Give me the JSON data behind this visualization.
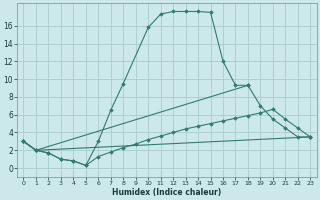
{
  "xlabel": "Humidex (Indice chaleur)",
  "bg_color": "#cce8ea",
  "grid_color": "#aacccc",
  "line_color": "#2e7d6e",
  "xlim": [
    -0.5,
    23.5
  ],
  "ylim": [
    -1.0,
    18.5
  ],
  "xticks": [
    0,
    1,
    2,
    3,
    4,
    5,
    6,
    7,
    8,
    9,
    10,
    11,
    12,
    13,
    14,
    15,
    16,
    17,
    18,
    19,
    20,
    21,
    22,
    23
  ],
  "yticks": [
    0,
    2,
    4,
    6,
    8,
    10,
    12,
    14,
    16
  ],
  "series": [
    {
      "x": [
        0,
        1,
        2,
        3,
        4,
        5,
        6,
        7,
        8,
        10,
        11,
        12,
        13,
        14,
        15,
        16,
        17,
        18
      ],
      "y": [
        3,
        2,
        1.7,
        1.0,
        0.8,
        0.3,
        3.0,
        6.5,
        9.5,
        15.8,
        17.3,
        17.6,
        17.6,
        17.6,
        17.5,
        12.0,
        9.3,
        9.3
      ]
    },
    {
      "x": [
        0,
        1,
        18,
        19,
        20,
        21,
        22,
        23
      ],
      "y": [
        3,
        2,
        9.3,
        7.0,
        5.5,
        4.5,
        3.5,
        3.5
      ]
    },
    {
      "x": [
        0,
        1,
        23
      ],
      "y": [
        3,
        2,
        3.5
      ]
    },
    {
      "x": [
        0,
        1,
        2,
        3,
        4,
        5,
        6,
        7,
        8,
        9,
        10,
        11,
        12,
        13,
        14,
        15,
        16,
        17,
        18,
        19,
        20,
        21,
        22,
        23
      ],
      "y": [
        3,
        2,
        1.7,
        1.0,
        0.8,
        0.3,
        1.3,
        1.8,
        2.3,
        2.7,
        3.2,
        3.6,
        4.0,
        4.4,
        4.7,
        5.0,
        5.3,
        5.6,
        5.9,
        6.2,
        6.6,
        5.5,
        4.5,
        3.5
      ]
    }
  ]
}
